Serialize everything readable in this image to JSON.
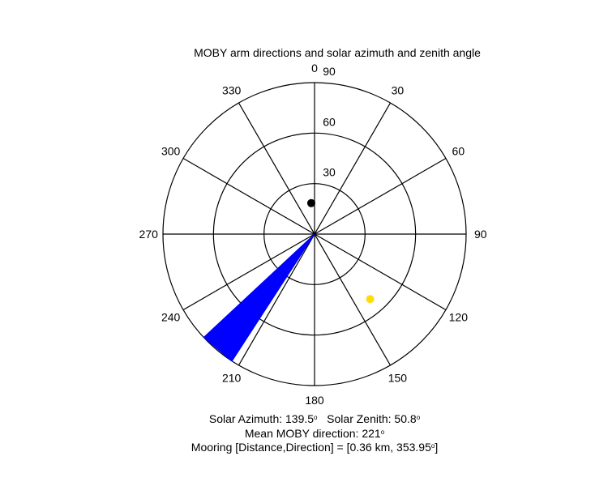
{
  "chart_data": {
    "type": "polar",
    "title": "MOBY arm directions and solar azimuth and zenith angle",
    "angle_ticks": [
      "0",
      "30",
      "60",
      "90",
      "120",
      "150",
      "180",
      "210",
      "240",
      "270",
      "300",
      "330"
    ],
    "angle_tick_values": [
      0,
      30,
      60,
      90,
      120,
      150,
      180,
      210,
      240,
      270,
      300,
      330
    ],
    "radial_tick_labels": [
      "30",
      "60",
      "90"
    ],
    "radial_ticks": [
      30,
      60,
      90
    ],
    "radial_max": 90,
    "zero_direction": "top",
    "rotation": "clockwise",
    "arm_fan": {
      "color": "#0000ff",
      "angle_min": 213,
      "angle_max": 227,
      "radius": 90
    },
    "sun": {
      "azimuth": 139.5,
      "zenith": 50.8,
      "color": "#ffdd00"
    },
    "mooring": {
      "direction": 353.95,
      "radius": 18.5,
      "color": "#000000"
    }
  },
  "captions": {
    "solar_azimuth_text": "Solar Azimuth: 139.5",
    "solar_zenith_text": "Solar Zenith: 50.8",
    "mean_direction_text": "Mean MOBY direction: 221",
    "mooring_text": "Mooring [Distance,Direction] = [0.36 km, 353.95",
    "mooring_close": "]",
    "degree_symbol": "o"
  }
}
